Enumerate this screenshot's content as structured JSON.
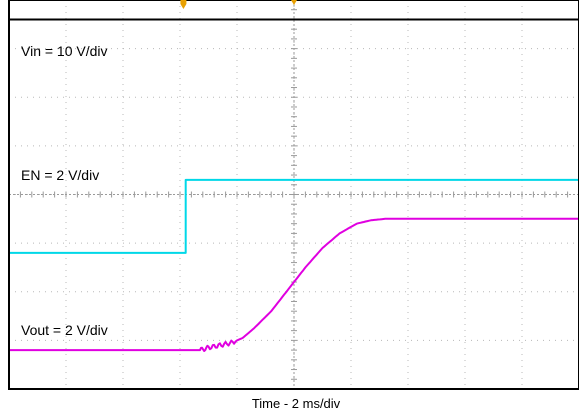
{
  "chart_data": {
    "type": "line",
    "title": "",
    "xlabel": "Time - 2 ms/div",
    "ylabel": "",
    "divisions": {
      "x": 10,
      "y": 8
    },
    "grid": true,
    "trigger_marker_color": "#e8a000",
    "annotations": {
      "vin": "Vin = 10 V/div",
      "en": "EN = 2 V/div",
      "vout": "Vout = 2 V/div"
    },
    "series": [
      {
        "key": "vin",
        "color": "#000000",
        "x_div": [
          0,
          10
        ],
        "y_div": [
          7.6,
          7.6
        ]
      },
      {
        "key": "en",
        "color": "#00d8e8",
        "x_div": [
          0,
          3.1,
          3.1,
          10
        ],
        "y_div": [
          2.8,
          2.8,
          4.3,
          4.3
        ]
      },
      {
        "key": "vout",
        "color": "#e000e0",
        "x_div": [
          0,
          3.35,
          3.5,
          3.7,
          3.9,
          4.1,
          4.3,
          4.6,
          4.9,
          5.2,
          5.5,
          5.8,
          6.1,
          6.35,
          6.6,
          10
        ],
        "y_div": [
          0.8,
          0.8,
          0.85,
          0.9,
          0.95,
          1.05,
          1.25,
          1.6,
          2.05,
          2.5,
          2.9,
          3.2,
          3.4,
          3.47,
          3.5,
          3.5
        ]
      }
    ]
  }
}
